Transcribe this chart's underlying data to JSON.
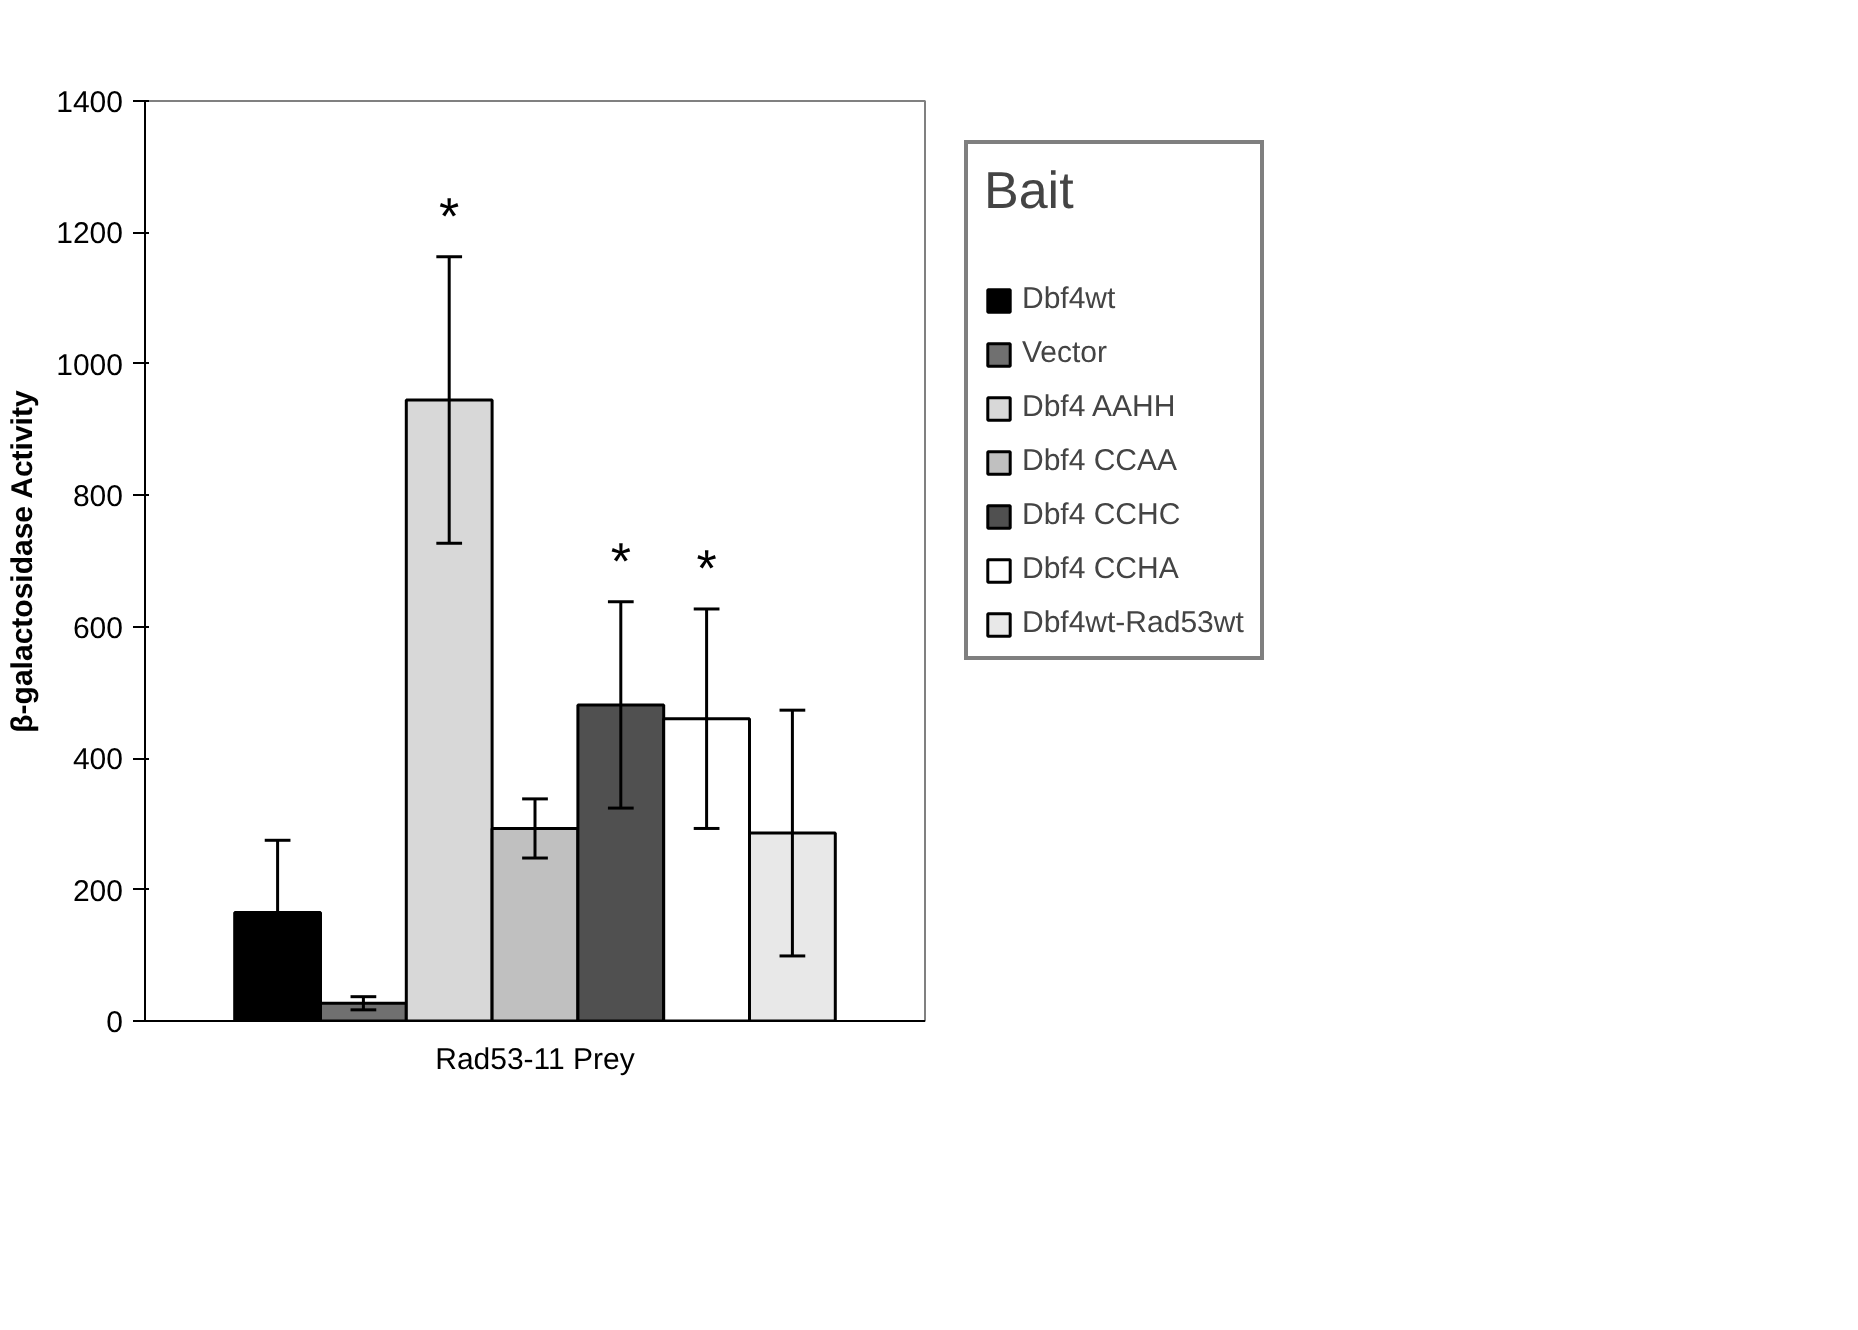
{
  "chart_data": {
    "type": "bar",
    "ylabel": "β-galactosidase Activity",
    "legend_title": "Bait",
    "categories": [
      "Rad53-11 Prey"
    ],
    "series": [
      {
        "name": "Dbf4wt",
        "color": "#000000",
        "values": [
          165
        ],
        "errors": [
          110
        ]
      },
      {
        "name": "Vector",
        "color": "#707070",
        "values": [
          27
        ],
        "errors": [
          10
        ]
      },
      {
        "name": "Dbf4 AAHH",
        "color": "#d8d8d8",
        "values": [
          945
        ],
        "errors": [
          218
        ],
        "value_labels": [
          "*"
        ]
      },
      {
        "name": "Dbf4 CCAA",
        "color": "#c0c0c0",
        "values": [
          293
        ],
        "errors": [
          45
        ]
      },
      {
        "name": "Dbf4 CCHC",
        "color": "#505050",
        "values": [
          481
        ],
        "errors": [
          157
        ],
        "value_labels": [
          "*"
        ]
      },
      {
        "name": "Dbf4 CCHA",
        "color": "#ffffff",
        "values": [
          460
        ],
        "errors": [
          167
        ],
        "value_labels": [
          "*"
        ]
      },
      {
        "name": "Dbf4wt-Rad53wt",
        "color": "#e8e8e8",
        "values": [
          286
        ],
        "errors": [
          187
        ]
      }
    ],
    "ylim": [
      0,
      1400
    ],
    "yticks": [
      0,
      200,
      400,
      600,
      800,
      1000,
      1200,
      1400
    ],
    "grid": false,
    "legend": "right"
  }
}
